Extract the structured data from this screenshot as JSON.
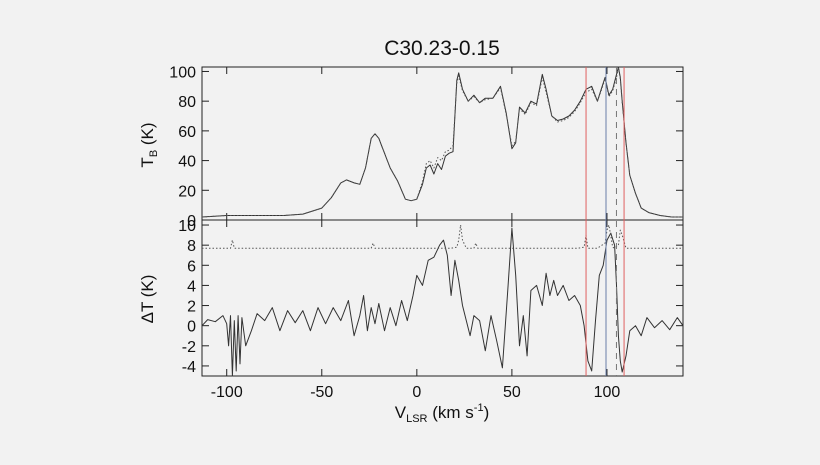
{
  "title": "C30.23-0.15",
  "colors": {
    "background": "#f2f2f2",
    "curve": "#333333",
    "dotted": "#555555",
    "red_marker": "#e06060",
    "blue_marker": "#6a7fa8",
    "gray_marker": "#777777"
  },
  "chart_data": [
    {
      "type": "line",
      "panel": "top",
      "ylabel": "T",
      "ylabel_sub": "B",
      "ylabel_unit": " (K)",
      "xlim": [
        -113,
        140
      ],
      "ylim": [
        0,
        103
      ],
      "yticks": [
        0,
        20,
        40,
        60,
        80,
        100
      ],
      "series": [
        {
          "style": "solid",
          "x": [
            -113,
            -100,
            -90,
            -80,
            -70,
            -60,
            -50,
            -45,
            -40,
            -37,
            -33,
            -30,
            -27,
            -24,
            -22,
            -20,
            -17,
            -14,
            -10,
            -6,
            -3,
            0,
            3,
            5,
            7,
            9,
            11,
            13,
            15,
            17,
            19,
            21,
            22,
            24,
            27,
            30,
            33,
            36,
            40,
            44,
            47,
            50,
            52,
            54,
            57,
            60,
            63,
            66,
            68,
            71,
            74,
            77,
            80,
            83,
            86,
            89,
            92,
            95,
            97,
            99,
            101,
            103,
            105,
            106,
            107,
            108,
            110,
            112,
            115,
            118,
            122,
            128,
            134,
            140
          ],
          "y": [
            2,
            3,
            3,
            3,
            3,
            4,
            8,
            15,
            25,
            27,
            25,
            24,
            35,
            55,
            58,
            55,
            45,
            35,
            26,
            14,
            13,
            14,
            24,
            35,
            37,
            31,
            38,
            34,
            43,
            45,
            46,
            94,
            99,
            88,
            80,
            84,
            79,
            82,
            82,
            90,
            72,
            48,
            52,
            76,
            72,
            80,
            78,
            98,
            88,
            70,
            67,
            68,
            70,
            74,
            80,
            88,
            90,
            80,
            88,
            96,
            84,
            88,
            98,
            103,
            96,
            80,
            52,
            30,
            18,
            8,
            5,
            3,
            2,
            2
          ]
        },
        {
          "style": "dotted",
          "x": [
            -113,
            -100,
            -90,
            -80,
            -70,
            -60,
            -50,
            -45,
            -40,
            -37,
            -33,
            -30,
            -27,
            -24,
            -22,
            -20,
            -17,
            -14,
            -10,
            -6,
            -3,
            0,
            3,
            5,
            7,
            9,
            11,
            13,
            15,
            17,
            19,
            21,
            22,
            24,
            27,
            30,
            33,
            36,
            40,
            44,
            47,
            50,
            52,
            54,
            57,
            60,
            63,
            66,
            68,
            71,
            74,
            77,
            80,
            83,
            86,
            89,
            92,
            95,
            97,
            99,
            101,
            103,
            105,
            106,
            107,
            108,
            110,
            112,
            115,
            118,
            122,
            128,
            134,
            140
          ],
          "y": [
            2,
            3,
            3,
            3,
            3,
            4,
            8,
            15,
            25,
            27,
            25,
            24,
            35,
            55,
            58,
            55,
            45,
            35,
            26,
            14,
            13,
            14,
            26,
            38,
            40,
            35,
            42,
            40,
            46,
            47,
            50,
            92,
            97,
            87,
            80,
            83,
            79,
            81,
            82,
            89,
            71,
            50,
            53,
            75,
            71,
            79,
            77,
            96,
            86,
            70,
            66,
            67,
            69,
            73,
            79,
            86,
            88,
            80,
            87,
            95,
            83,
            87,
            96,
            102,
            95,
            79,
            52,
            30,
            18,
            8,
            5,
            3,
            2,
            2
          ]
        }
      ]
    },
    {
      "type": "line",
      "panel": "bottom",
      "xlabel": "V",
      "xlabel_sub": "LSR",
      "xlabel_unit_pre": " (km s",
      "xlabel_sup": "-1",
      "xlabel_unit_post": ")",
      "ylabel": "ΔT (K)",
      "xlim": [
        -113,
        140
      ],
      "ylim": [
        -5,
        10.5
      ],
      "xticks": [
        -100,
        -50,
        0,
        50,
        100
      ],
      "yticks": [
        -4,
        -2,
        0,
        2,
        4,
        6,
        8,
        10
      ],
      "series": [
        {
          "style": "solid",
          "x": [
            -113,
            -110,
            -106,
            -102,
            -100,
            -99,
            -98,
            -97,
            -96,
            -95,
            -94,
            -93,
            -92,
            -90,
            -87,
            -84,
            -80,
            -76,
            -72,
            -68,
            -64,
            -60,
            -56,
            -52,
            -48,
            -44,
            -40,
            -36,
            -33,
            -30,
            -28,
            -26,
            -24,
            -22,
            -20,
            -17,
            -14,
            -11,
            -8,
            -5,
            -2,
            0,
            3,
            6,
            9,
            12,
            14,
            16,
            18,
            20,
            22,
            24,
            26,
            28,
            30,
            33,
            36,
            39,
            42,
            45,
            48,
            50,
            52,
            54,
            56,
            58,
            60,
            63,
            66,
            68,
            70,
            72,
            74,
            77,
            80,
            83,
            86,
            88,
            90,
            92,
            94,
            96,
            98,
            100,
            102,
            104,
            105,
            106,
            107,
            108,
            110,
            112,
            115,
            118,
            121,
            125,
            129,
            133,
            137,
            140
          ],
          "y": [
            0,
            0.6,
            0.4,
            1,
            0.2,
            -2,
            1,
            -5,
            0.5,
            -4.5,
            1,
            -3.8,
            0.8,
            -2,
            -0.5,
            1.2,
            0.5,
            1.8,
            -0.5,
            1.5,
            0.3,
            1.5,
            -0.5,
            1.8,
            0.2,
            1.8,
            0.5,
            2.5,
            -1,
            1,
            3,
            -0.5,
            1.8,
            0.2,
            2.2,
            -0.5,
            1.8,
            0,
            2.5,
            0.5,
            3,
            5,
            4,
            6.5,
            6.8,
            8,
            8.5,
            7,
            3,
            6.5,
            4.5,
            2,
            0.5,
            -1,
            1,
            0.5,
            -2.5,
            1,
            -1.5,
            -4.2,
            4,
            9.7,
            5,
            -2,
            1,
            -3,
            3.5,
            4,
            2,
            5.2,
            3,
            4.5,
            3,
            4,
            2.5,
            3,
            2,
            0,
            -3.5,
            -4.5,
            0.5,
            5,
            6,
            8.5,
            9.2,
            8,
            4,
            -1,
            -3.5,
            -4.6,
            -3,
            -0.5,
            0,
            -1,
            0.8,
            -0.2,
            0.5,
            -0.4,
            0.8,
            0
          ]
        },
        {
          "style": "dotted",
          "x": [
            -113,
            -98,
            -97,
            -96,
            -30,
            -24,
            -23,
            -22,
            -10,
            18,
            21,
            22,
            23,
            24,
            26,
            30,
            31,
            32,
            40,
            85,
            88,
            89,
            90,
            95,
            99,
            100,
            101,
            103,
            104,
            106,
            107,
            108,
            110,
            140
          ],
          "y": [
            7.7,
            7.7,
            8.5,
            7.7,
            7.7,
            7.7,
            8.2,
            7.7,
            7.7,
            7.7,
            7.8,
            8.5,
            10,
            8.5,
            7.7,
            7.7,
            8.2,
            7.7,
            7.7,
            7.7,
            7.8,
            9,
            7.7,
            7.7,
            8.2,
            9.5,
            10,
            7.8,
            7.7,
            8,
            9.5,
            9,
            7.7,
            7.7
          ]
        }
      ]
    }
  ],
  "markers": [
    {
      "style": "red",
      "x": 89
    },
    {
      "style": "red",
      "x": 109
    },
    {
      "style": "blue",
      "x": 99.5
    },
    {
      "style": "gray-dashed",
      "x": 105
    }
  ]
}
